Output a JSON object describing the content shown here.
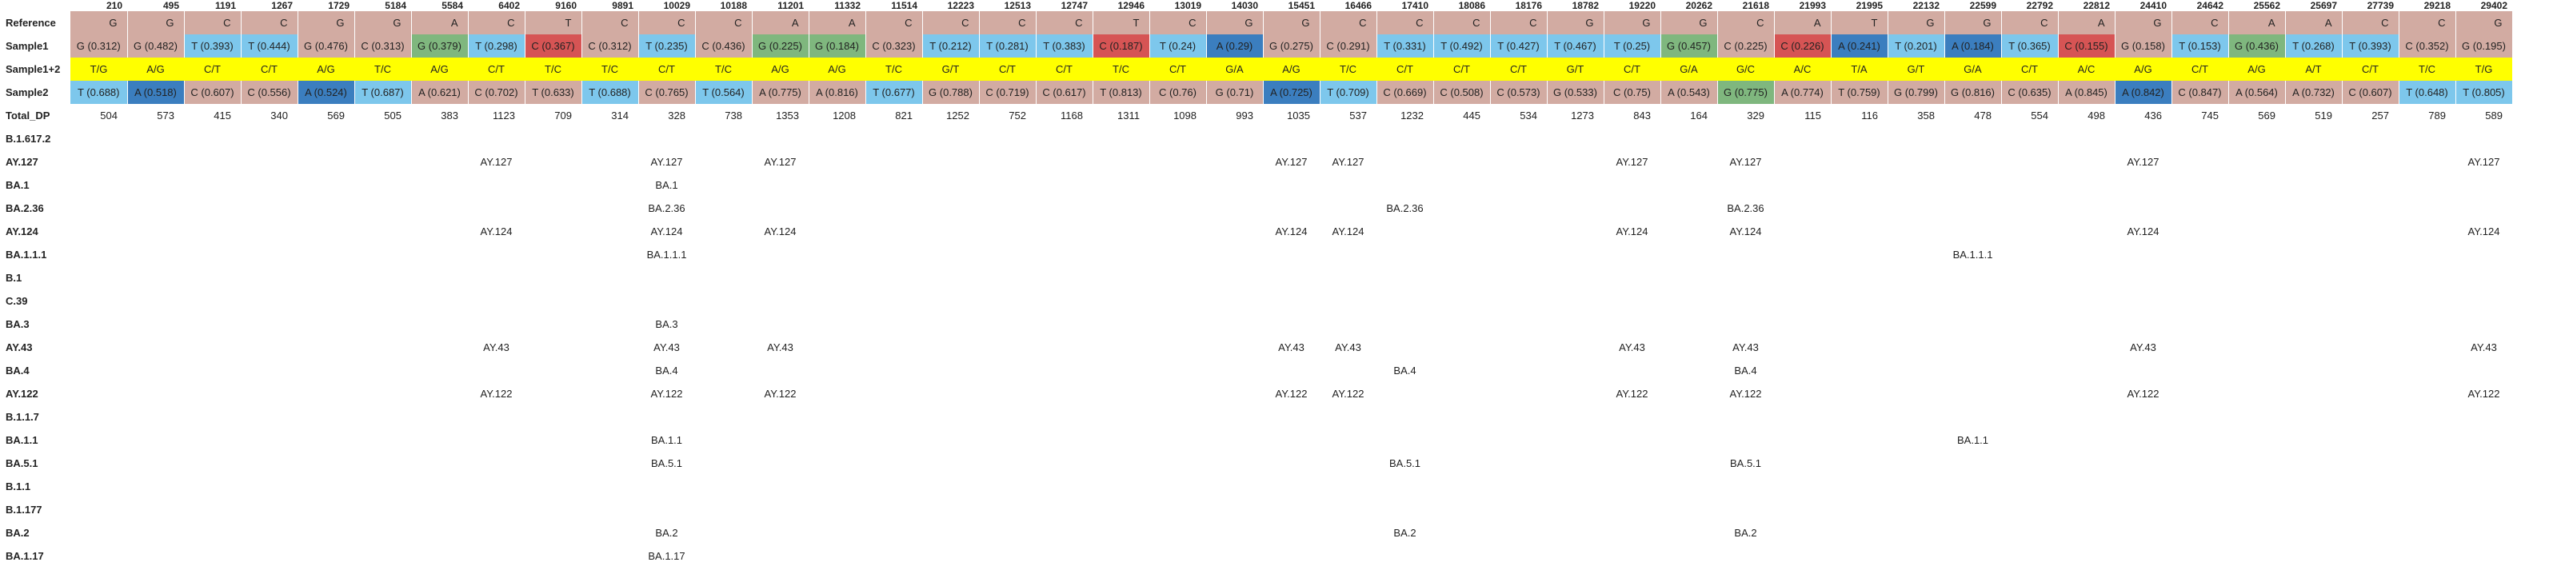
{
  "colors": {
    "ref_bg": "#d2aba2",
    "G": "#d2aba2",
    "C": "#d2aba2",
    "T": "#7dc7ec",
    "A_light": "#7dc7ec",
    "A_dark": "#3b7ebf",
    "G_green": "#7fb77e",
    "C_red": "#d65454",
    "T_light": "#7dc7ec",
    "genotype_yellow": "#ffff00"
  },
  "positions": [
    "210",
    "495",
    "1191",
    "1267",
    "1729",
    "5184",
    "5584",
    "6402",
    "9160",
    "9891",
    "10029",
    "10188",
    "11201",
    "11332",
    "11514",
    "12223",
    "12513",
    "12747",
    "12946",
    "13019",
    "14030",
    "15451",
    "16466",
    "17410",
    "18086",
    "18176",
    "18782",
    "19220",
    "20262",
    "21618",
    "21993",
    "21995",
    "22132",
    "22599",
    "22792",
    "22812",
    "24410",
    "24642",
    "25562",
    "25697",
    "27739",
    "29218",
    "29402"
  ],
  "rows": {
    "reference": {
      "label": "Reference",
      "values": [
        "G",
        "G",
        "C",
        "C",
        "G",
        "G",
        "A",
        "C",
        "T",
        "C",
        "C",
        "C",
        "A",
        "A",
        "C",
        "C",
        "C",
        "C",
        "T",
        "C",
        "G",
        "G",
        "C",
        "C",
        "C",
        "C",
        "G",
        "G",
        "G",
        "C",
        "A",
        "T",
        "G",
        "G",
        "C",
        "A",
        "G",
        "C",
        "A",
        "A",
        "C",
        "C",
        "G"
      ]
    },
    "sample1": {
      "label": "Sample1",
      "values": [
        "G (0.312)",
        "G (0.482)",
        "T (0.393)",
        "T (0.444)",
        "G (0.476)",
        "C (0.313)",
        "G (0.379)",
        "T (0.298)",
        "C (0.367)",
        "C (0.312)",
        "T (0.235)",
        "C (0.436)",
        "G (0.225)",
        "G (0.184)",
        "C (0.323)",
        "T (0.212)",
        "T (0.281)",
        "T (0.383)",
        "C (0.187)",
        "T (0.24)",
        "A (0.29)",
        "G (0.275)",
        "C (0.291)",
        "T (0.331)",
        "T (0.492)",
        "T (0.427)",
        "T (0.467)",
        "T (0.25)",
        "G (0.457)",
        "C (0.225)",
        "C (0.226)",
        "A (0.241)",
        "T (0.201)",
        "A (0.184)",
        "T (0.365)",
        "C (0.155)",
        "G (0.158)",
        "T (0.153)",
        "G (0.436)",
        "T (0.268)",
        "T (0.393)",
        "C (0.352)",
        "G (0.195)"
      ],
      "colors": [
        "#d2aba2",
        "#d2aba2",
        "#7dc7ec",
        "#7dc7ec",
        "#d2aba2",
        "#d2aba2",
        "#7fb77e",
        "#7dc7ec",
        "#d65454",
        "#d2aba2",
        "#7dc7ec",
        "#d2aba2",
        "#7fb77e",
        "#7fb77e",
        "#d2aba2",
        "#7dc7ec",
        "#7dc7ec",
        "#7dc7ec",
        "#d65454",
        "#7dc7ec",
        "#3b7ebf",
        "#d2aba2",
        "#d2aba2",
        "#7dc7ec",
        "#7dc7ec",
        "#7dc7ec",
        "#7dc7ec",
        "#7dc7ec",
        "#7fb77e",
        "#d2aba2",
        "#d65454",
        "#3b7ebf",
        "#7dc7ec",
        "#3b7ebf",
        "#7dc7ec",
        "#d65454",
        "#d2aba2",
        "#7dc7ec",
        "#7fb77e",
        "#7dc7ec",
        "#7dc7ec",
        "#d2aba2",
        "#d2aba2"
      ]
    },
    "sample12": {
      "label": "Sample1+2",
      "values": [
        "T/G",
        "A/G",
        "C/T",
        "C/T",
        "A/G",
        "T/C",
        "A/G",
        "C/T",
        "T/C",
        "T/C",
        "C/T",
        "T/C",
        "A/G",
        "A/G",
        "T/C",
        "G/T",
        "C/T",
        "C/T",
        "T/C",
        "C/T",
        "G/A",
        "A/G",
        "T/C",
        "C/T",
        "C/T",
        "C/T",
        "G/T",
        "C/T",
        "G/A",
        "G/C",
        "A/C",
        "T/A",
        "G/T",
        "G/A",
        "C/T",
        "A/C",
        "A/G",
        "C/T",
        "A/G",
        "A/T",
        "C/T",
        "T/C",
        "T/G"
      ]
    },
    "sample2": {
      "label": "Sample2",
      "values": [
        "T (0.688)",
        "A (0.518)",
        "C (0.607)",
        "C (0.556)",
        "A (0.524)",
        "T (0.687)",
        "A (0.621)",
        "C (0.702)",
        "T (0.633)",
        "T (0.688)",
        "C (0.765)",
        "T (0.564)",
        "A (0.775)",
        "A (0.816)",
        "T (0.677)",
        "G (0.788)",
        "C (0.719)",
        "C (0.617)",
        "T (0.813)",
        "C (0.76)",
        "G (0.71)",
        "A (0.725)",
        "T (0.709)",
        "C (0.669)",
        "C (0.508)",
        "C (0.573)",
        "G (0.533)",
        "C (0.75)",
        "A (0.543)",
        "G (0.775)",
        "A (0.774)",
        "T (0.759)",
        "G (0.799)",
        "G (0.816)",
        "C (0.635)",
        "A (0.845)",
        "A (0.842)",
        "C (0.847)",
        "A (0.564)",
        "A (0.732)",
        "C (0.607)",
        "T (0.648)",
        "T (0.805)"
      ],
      "colors": [
        "#7dc7ec",
        "#3b7ebf",
        "#d2aba2",
        "#d2aba2",
        "#3b7ebf",
        "#7dc7ec",
        "#d2aba2",
        "#d2aba2",
        "#d2aba2",
        "#7dc7ec",
        "#d2aba2",
        "#7dc7ec",
        "#d2aba2",
        "#d2aba2",
        "#7dc7ec",
        "#d2aba2",
        "#d2aba2",
        "#d2aba2",
        "#d2aba2",
        "#d2aba2",
        "#d2aba2",
        "#3b7ebf",
        "#7dc7ec",
        "#d2aba2",
        "#d2aba2",
        "#d2aba2",
        "#d2aba2",
        "#d2aba2",
        "#d2aba2",
        "#7fb77e",
        "#d2aba2",
        "#d2aba2",
        "#d2aba2",
        "#d2aba2",
        "#d2aba2",
        "#d2aba2",
        "#3b7ebf",
        "#d2aba2",
        "#d2aba2",
        "#d2aba2",
        "#d2aba2",
        "#7dc7ec",
        "#7dc7ec"
      ]
    },
    "total_dp": {
      "label": "Total_DP",
      "values": [
        "504",
        "573",
        "415",
        "340",
        "569",
        "505",
        "383",
        "1123",
        "709",
        "314",
        "328",
        "738",
        "1353",
        "1208",
        "821",
        "1252",
        "752",
        "1168",
        "1311",
        "1098",
        "993",
        "1035",
        "537",
        "1232",
        "445",
        "534",
        "1273",
        "843",
        "164",
        "329",
        "115",
        "116",
        "358",
        "478",
        "554",
        "498",
        "436",
        "745",
        "569",
        "519",
        "257",
        "789",
        "589"
      ]
    }
  },
  "lineages": [
    {
      "label": "B.1.617.2",
      "cells": {}
    },
    {
      "label": "AY.127",
      "cells": {
        "7": "AY.127",
        "10": "AY.127",
        "12": "AY.127",
        "21": "AY.127",
        "22": "AY.127",
        "27": "AY.127",
        "29": "AY.127",
        "36": "AY.127",
        "42": "AY.127"
      }
    },
    {
      "label": "BA.1",
      "cells": {
        "10": "BA.1"
      }
    },
    {
      "label": "BA.2.36",
      "cells": {
        "10": "BA.2.36",
        "23": "BA.2.36",
        "29": "BA.2.36"
      }
    },
    {
      "label": "AY.124",
      "cells": {
        "7": "AY.124",
        "10": "AY.124",
        "12": "AY.124",
        "21": "AY.124",
        "22": "AY.124",
        "27": "AY.124",
        "29": "AY.124",
        "36": "AY.124",
        "42": "AY.124"
      }
    },
    {
      "label": "BA.1.1.1",
      "cells": {
        "10": "BA.1.1.1",
        "33": "BA.1.1.1"
      }
    },
    {
      "label": "B.1",
      "cells": {}
    },
    {
      "label": "C.39",
      "cells": {}
    },
    {
      "label": "BA.3",
      "cells": {
        "10": "BA.3"
      }
    },
    {
      "label": "AY.43",
      "cells": {
        "7": "AY.43",
        "10": "AY.43",
        "12": "AY.43",
        "21": "AY.43",
        "22": "AY.43",
        "27": "AY.43",
        "29": "AY.43",
        "36": "AY.43",
        "42": "AY.43"
      }
    },
    {
      "label": "BA.4",
      "cells": {
        "10": "BA.4",
        "23": "BA.4",
        "29": "BA.4"
      }
    },
    {
      "label": "AY.122",
      "cells": {
        "7": "AY.122",
        "10": "AY.122",
        "12": "AY.122",
        "21": "AY.122",
        "22": "AY.122",
        "27": "AY.122",
        "29": "AY.122",
        "36": "AY.122",
        "42": "AY.122"
      }
    },
    {
      "label": "B.1.1.7",
      "cells": {}
    },
    {
      "label": "BA.1.1",
      "cells": {
        "10": "BA.1.1",
        "33": "BA.1.1"
      }
    },
    {
      "label": "BA.5.1",
      "cells": {
        "10": "BA.5.1",
        "23": "BA.5.1",
        "29": "BA.5.1"
      }
    },
    {
      "label": "B.1.1",
      "cells": {}
    },
    {
      "label": "B.1.177",
      "cells": {}
    },
    {
      "label": "BA.2",
      "cells": {
        "10": "BA.2",
        "23": "BA.2",
        "29": "BA.2"
      }
    },
    {
      "label": "BA.1.17",
      "cells": {
        "10": "BA.1.17"
      }
    }
  ]
}
